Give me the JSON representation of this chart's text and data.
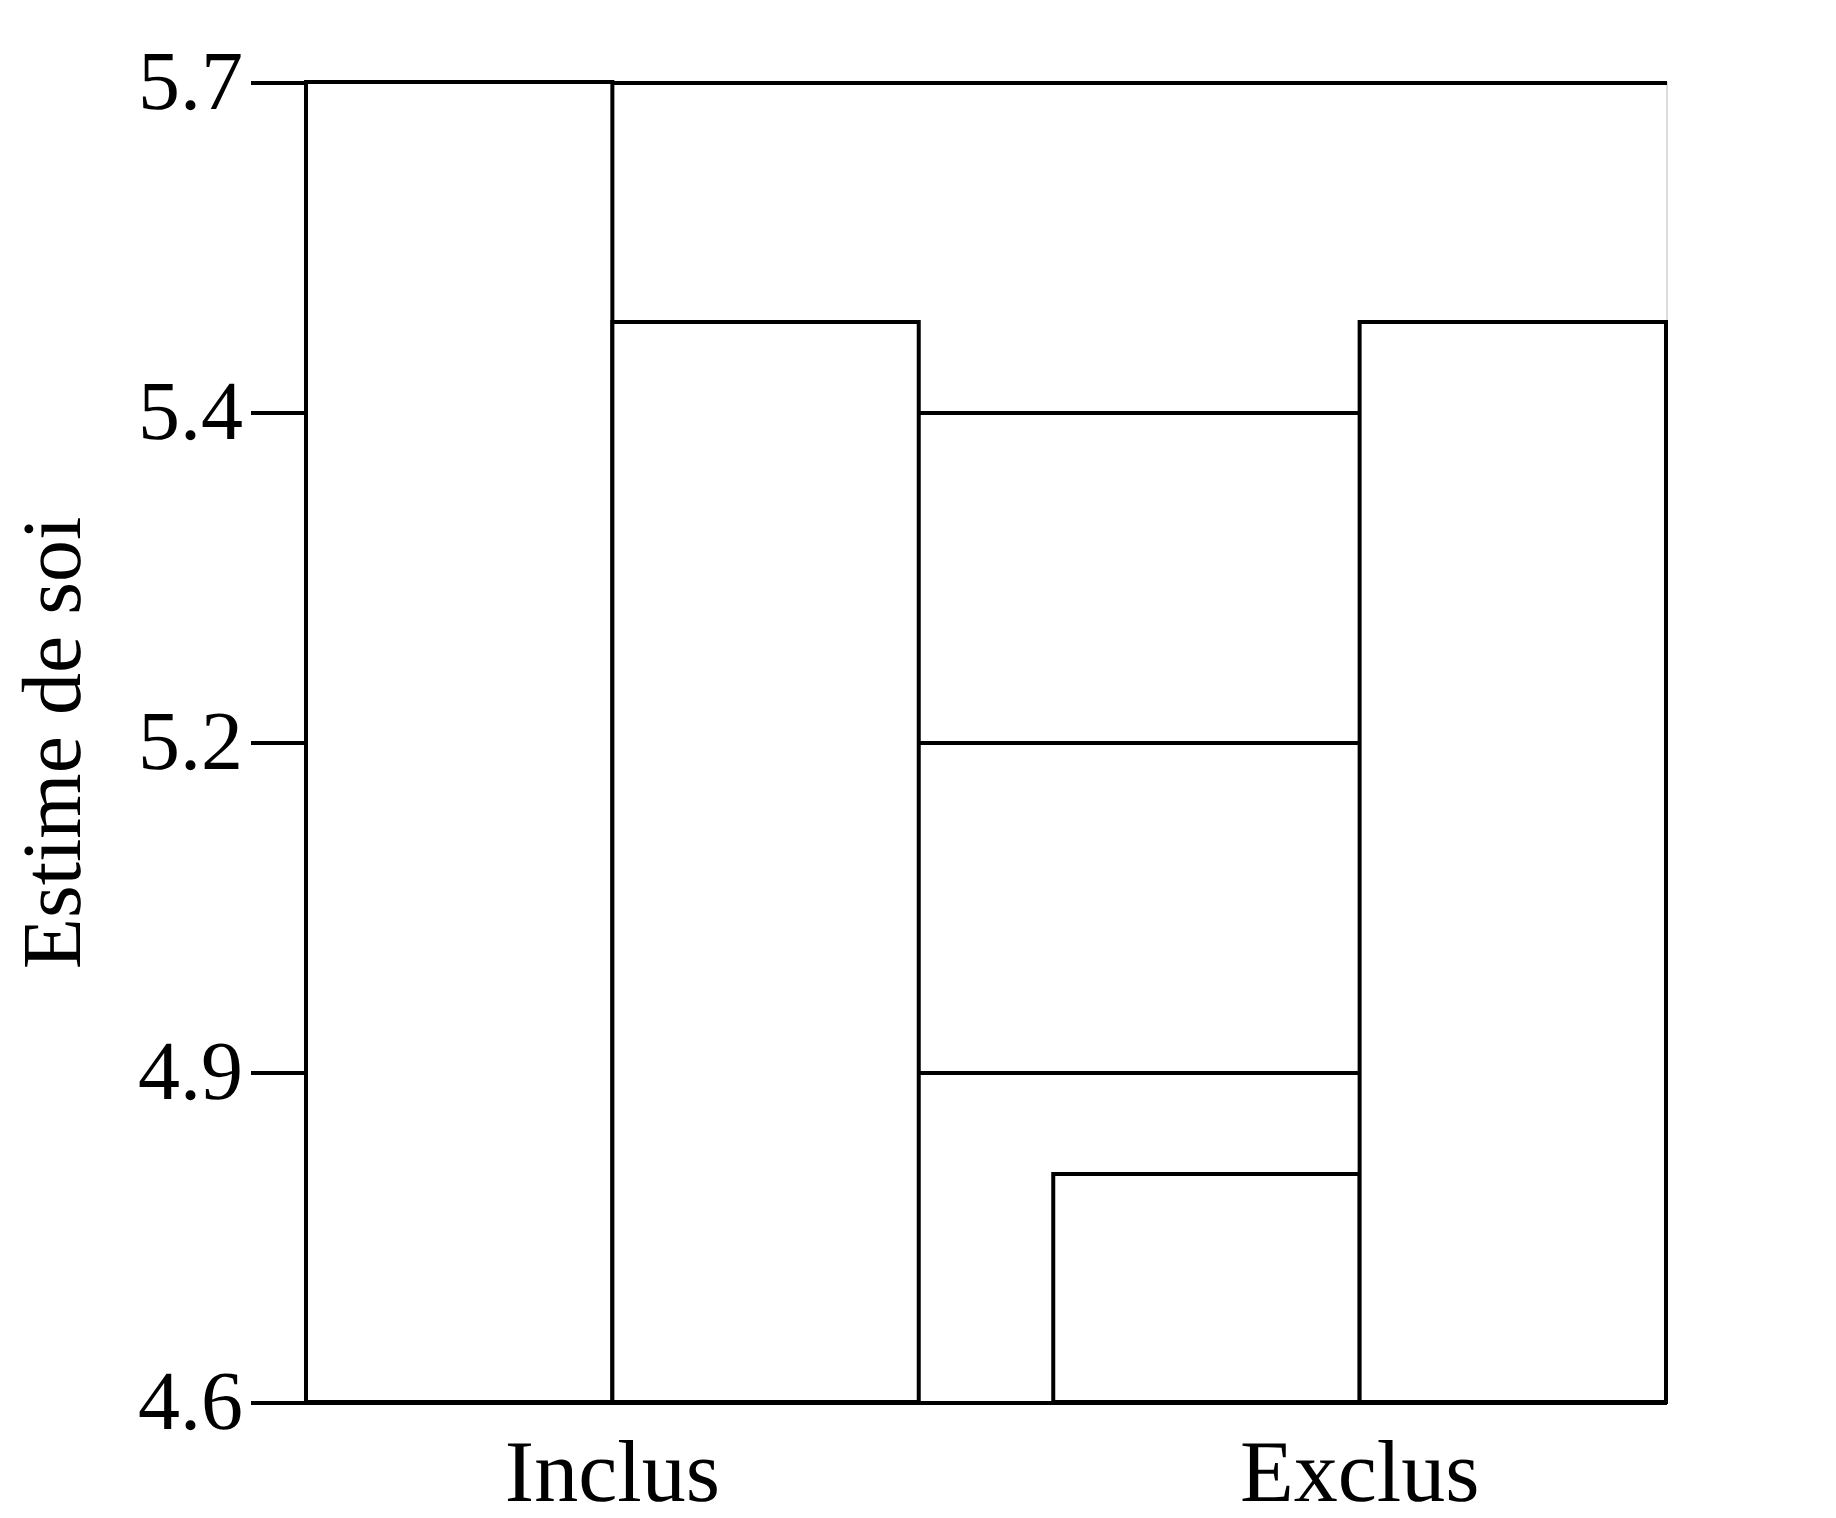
{
  "chart_data": {
    "type": "bar",
    "ylabel": "Estime de soi",
    "categories": [
      "Inclus",
      "Exclus"
    ],
    "series": [
      {
        "color": "#ffffff",
        "values": [
          5.7,
          4.79
        ]
      },
      {
        "color": "#ffffff",
        "values": [
          5.5,
          5.5
        ]
      }
    ],
    "ylim": [
      4.6,
      5.7
    ],
    "yticks": [
      {
        "value": 4.6,
        "label": "4.6"
      },
      {
        "value": 4.875,
        "label": "4.9"
      },
      {
        "value": 5.15,
        "label": "5.2"
      },
      {
        "value": 5.425,
        "label": "5.4"
      },
      {
        "value": 5.7,
        "label": "5.7"
      }
    ],
    "grid": "y",
    "legend": false
  }
}
